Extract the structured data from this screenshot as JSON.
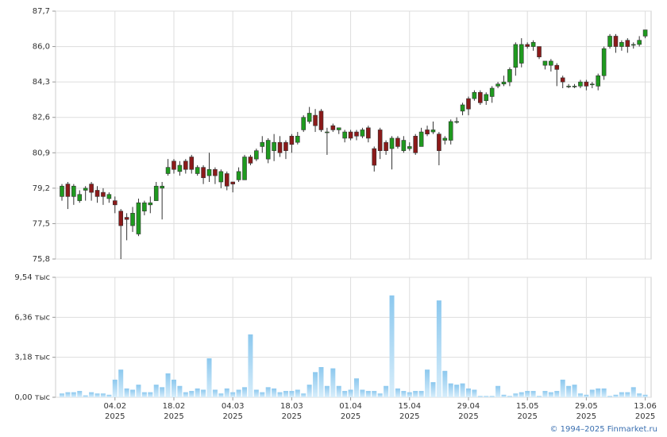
{
  "chart_data": [
    {
      "type": "candlestick",
      "up_color": "#1f9a1f",
      "down_color": "#8b1a1a",
      "grid": true,
      "ylim": [
        75.8,
        87.7
      ],
      "yticks": [
        {
          "value": 75.8,
          "label": "75,8"
        },
        {
          "value": 77.5,
          "label": "77,5"
        },
        {
          "value": 79.2,
          "label": "79,2"
        },
        {
          "value": 80.9,
          "label": "80,9"
        },
        {
          "value": 82.6,
          "label": "82,6"
        },
        {
          "value": 84.3,
          "label": "84,3"
        },
        {
          "value": 86.0,
          "label": "86,0"
        },
        {
          "value": 87.7,
          "label": "87,7"
        }
      ],
      "open": [
        78.8,
        79.4,
        78.8,
        78.6,
        79.1,
        79.4,
        79.1,
        79.0,
        78.7,
        78.6,
        78.1,
        77.8,
        77.4,
        77.0,
        78.1,
        78.4,
        78.6,
        79.2,
        79.9,
        80.5,
        80.0,
        80.5,
        80.7,
        79.9,
        80.2,
        79.8,
        80.1,
        79.5,
        79.9,
        79.5,
        79.6,
        79.6,
        80.7,
        80.6,
        81.2,
        80.6,
        81.0,
        81.4,
        81.4,
        81.7,
        81.4,
        82.0,
        82.4,
        82.7,
        82.9,
        81.9,
        82.2,
        82.0,
        81.6,
        81.9,
        81.9,
        81.7,
        82.1,
        81.1,
        82.0,
        81.4,
        81.1,
        81.6,
        81.0,
        81.1,
        81.7,
        81.2,
        82.0,
        81.9,
        81.8,
        81.5,
        81.5,
        82.4,
        82.9,
        83.5,
        83.5,
        83.8,
        83.4,
        83.6,
        84.1,
        84.2,
        84.3,
        85.0,
        85.2,
        86.1,
        86.0,
        86.0,
        85.1,
        85.1,
        85.1,
        84.5,
        84.1,
        84.1,
        84.1,
        84.3,
        84.2,
        84.1,
        84.6,
        86.0,
        86.5,
        86.0,
        86.3,
        86.1,
        86.1,
        86.5
      ],
      "high": [
        79.4,
        79.5,
        79.4,
        79.1,
        79.3,
        79.5,
        79.3,
        79.2,
        79.0,
        78.8,
        78.2,
        78.0,
        78.3,
        78.7,
        78.6,
        78.8,
        79.5,
        79.5,
        80.6,
        80.6,
        80.5,
        80.6,
        80.8,
        80.3,
        80.3,
        80.9,
        80.2,
        80.1,
        80.0,
        79.5,
        80.2,
        80.8,
        80.8,
        81.1,
        81.7,
        81.6,
        81.8,
        81.7,
        81.5,
        81.8,
        81.9,
        82.7,
        83.1,
        83.0,
        83.0,
        82.1,
        82.3,
        82.1,
        82.0,
        82.0,
        82.0,
        82.1,
        82.2,
        81.2,
        82.1,
        81.5,
        81.7,
        81.7,
        81.7,
        81.4,
        81.8,
        82.1,
        82.2,
        82.4,
        81.9,
        81.7,
        82.5,
        82.6,
        83.3,
        83.6,
        83.9,
        83.9,
        83.8,
        84.1,
        84.3,
        84.6,
        85.0,
        86.2,
        86.4,
        86.2,
        86.3,
        86.0,
        85.3,
        85.4,
        85.2,
        84.6,
        84.2,
        84.2,
        84.4,
        84.4,
        84.3,
        84.7,
        86.0,
        86.6,
        86.6,
        86.3,
        86.4,
        86.2,
        86.5,
        86.8
      ],
      "low": [
        78.6,
        78.2,
        78.4,
        78.5,
        78.6,
        78.6,
        78.5,
        78.4,
        78.5,
        78.0,
        75.8,
        76.7,
        77.1,
        76.9,
        77.9,
        78.0,
        78.6,
        77.7,
        79.8,
        79.9,
        79.8,
        79.9,
        79.9,
        79.8,
        79.4,
        79.5,
        79.4,
        79.2,
        79.1,
        79.0,
        79.5,
        79.6,
        80.3,
        80.5,
        80.9,
        80.4,
        80.5,
        80.7,
        80.6,
        80.9,
        81.3,
        81.9,
        82.3,
        81.9,
        81.9,
        80.8,
        81.9,
        81.8,
        81.4,
        81.5,
        81.5,
        81.6,
        81.4,
        80.0,
        80.6,
        80.8,
        80.1,
        81.1,
        80.9,
        81.0,
        80.8,
        81.2,
        81.7,
        81.8,
        80.3,
        81.3,
        81.3,
        82.3,
        82.7,
        82.7,
        83.4,
        83.2,
        83.2,
        83.3,
        84.0,
        84.1,
        84.1,
        84.6,
        85.0,
        85.9,
        85.8,
        85.4,
        84.9,
        84.8,
        84.1,
        84.0,
        84.0,
        84.0,
        84.0,
        83.9,
        84.0,
        83.9,
        84.4,
        85.9,
        85.7,
        85.8,
        85.7,
        85.9,
        86.0,
        86.4
      ],
      "close": [
        79.3,
        78.8,
        79.3,
        78.9,
        79.2,
        79.0,
        78.8,
        78.8,
        78.9,
        78.4,
        77.4,
        77.7,
        78.0,
        78.5,
        78.5,
        78.5,
        79.3,
        79.3,
        80.2,
        80.1,
        80.3,
        80.1,
        80.1,
        80.2,
        79.7,
        80.1,
        79.8,
        80.0,
        79.3,
        79.4,
        80.0,
        80.7,
        80.4,
        81.0,
        81.4,
        81.5,
        81.4,
        80.9,
        81.0,
        81.3,
        81.7,
        82.6,
        82.8,
        82.2,
        82.0,
        81.9,
        82.0,
        82.1,
        81.9,
        81.6,
        81.7,
        82.0,
        81.6,
        80.3,
        81.0,
        81.0,
        81.6,
        81.2,
        81.5,
        81.2,
        80.9,
        81.9,
        81.8,
        82.0,
        81.0,
        81.6,
        82.4,
        82.4,
        83.2,
        83.0,
        83.8,
        83.3,
        83.7,
        84.0,
        84.2,
        84.3,
        84.9,
        86.1,
        86.1,
        86.0,
        86.2,
        85.5,
        85.3,
        85.3,
        84.9,
        84.3,
        84.1,
        84.1,
        84.3,
        84.1,
        84.2,
        84.6,
        85.9,
        86.5,
        86.0,
        86.2,
        86.0,
        86.1,
        86.3,
        86.8
      ]
    },
    {
      "type": "bar",
      "color": "#8cc8ee",
      "grid": true,
      "ylim": [
        0,
        9.54
      ],
      "yticks": [
        {
          "value": 0,
          "label": "0,00 тыс"
        },
        {
          "value": 3.18,
          "label": "3,18 тыс"
        },
        {
          "value": 6.36,
          "label": "6,36 тыс"
        },
        {
          "value": 9.54,
          "label": "9,54 тыс"
        }
      ],
      "categories": [
        null,
        null,
        null,
        null,
        null,
        null,
        null,
        null,
        null,
        "04.02\n2025",
        null,
        null,
        null,
        null,
        null,
        null,
        null,
        null,
        null,
        "18.02\n2025",
        null,
        null,
        null,
        null,
        null,
        null,
        null,
        null,
        null,
        "04.03\n2025",
        null,
        null,
        null,
        null,
        null,
        null,
        null,
        null,
        null,
        "18.03\n2025",
        null,
        null,
        null,
        null,
        null,
        null,
        null,
        null,
        null,
        "01.04\n2025",
        null,
        null,
        null,
        null,
        null,
        null,
        null,
        null,
        null,
        "15.04\n2025",
        null,
        null,
        null,
        null,
        null,
        null,
        null,
        null,
        null,
        "29.04\n2025",
        null,
        null,
        null,
        null,
        null,
        null,
        null,
        null,
        null,
        "15.05\n2025",
        null,
        null,
        null,
        null,
        null,
        null,
        null,
        null,
        null,
        "29.05\n2025",
        null,
        null,
        null,
        null,
        null,
        null,
        null,
        null,
        null,
        "13.06\n2025"
      ],
      "values": [
        0.3,
        0.4,
        0.4,
        0.5,
        0.15,
        0.4,
        0.3,
        0.3,
        0.2,
        1.4,
        2.2,
        0.7,
        0.6,
        1.0,
        0.4,
        0.4,
        1.0,
        0.8,
        1.9,
        1.4,
        0.9,
        0.4,
        0.5,
        0.7,
        0.6,
        3.1,
        0.6,
        0.3,
        0.7,
        0.4,
        0.6,
        0.8,
        5.0,
        0.6,
        0.4,
        0.8,
        0.7,
        0.4,
        0.5,
        0.5,
        0.6,
        0.3,
        1.0,
        2.0,
        2.4,
        0.9,
        2.3,
        0.9,
        0.5,
        0.6,
        1.5,
        0.6,
        0.5,
        0.5,
        0.3,
        0.9,
        8.1,
        0.7,
        0.5,
        0.4,
        0.5,
        0.5,
        2.2,
        1.2,
        7.7,
        2.1,
        1.1,
        1.0,
        1.1,
        0.7,
        0.6,
        0.1,
        0.1,
        0.1,
        0.9,
        0.2,
        0.1,
        0.3,
        0.4,
        0.5,
        0.5,
        0.1,
        0.5,
        0.4,
        0.5,
        1.4,
        0.9,
        1.0,
        0.3,
        0.2,
        0.6,
        0.7,
        0.7,
        0.1,
        0.2,
        0.4,
        0.4,
        0.8,
        0.3,
        0.2
      ]
    }
  ],
  "footer": "© 1994–2025 Finmarket.ru"
}
